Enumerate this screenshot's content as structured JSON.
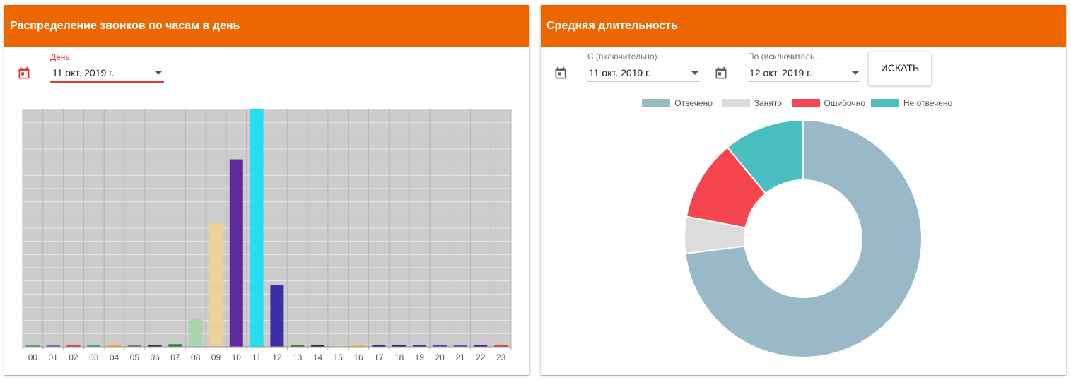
{
  "left_panel": {
    "title": "Распределение звонков по часам в день",
    "day_label": "День",
    "day_value": "11 окт. 2019 г."
  },
  "right_panel": {
    "title": "Средняя длительность",
    "from_label": "С (включительно)",
    "from_value": "11 окт. 2019 г.",
    "to_label": "По (исключитель…",
    "to_value": "12 окт. 2019 г.",
    "search_button": "ИСКАТЬ"
  },
  "colors": {
    "header": "#ee6600",
    "accent_red": "#e53935",
    "plot_bg": "#cccccc"
  },
  "icons": [
    "calendar-icon",
    "chevron-down-icon"
  ],
  "chart_data": [
    {
      "type": "bar",
      "title": "",
      "xlabel": "",
      "ylabel": "",
      "grid": true,
      "categories": [
        "00",
        "01",
        "02",
        "03",
        "04",
        "05",
        "06",
        "07",
        "08",
        "09",
        "10",
        "11",
        "12",
        "13",
        "14",
        "15",
        "16",
        "17",
        "18",
        "19",
        "20",
        "21",
        "22",
        "23"
      ],
      "values": [
        0,
        0,
        0,
        0,
        0,
        0,
        0,
        0.1,
        1.2,
        5.4,
        8.2,
        10.4,
        2.7,
        0,
        0,
        0,
        0,
        0,
        0,
        0,
        0,
        0,
        0,
        0
      ],
      "ylim": [
        0,
        10.4
      ],
      "bar_colors": [
        "#4caf50",
        "#7e57c2",
        "#e53935",
        "#26a69a",
        "#ffa726",
        "#8d6e63",
        "#333333",
        "#2e7d32",
        "#a5d6a7",
        "#f0d090",
        "#5e2a9e",
        "#25dff0",
        "#3d2ea8",
        "#2e7d32",
        "#212121",
        "#e0d0a0",
        "#f0c040",
        "#311b92",
        "#1a237e",
        "#283593",
        "#3949ab",
        "#3f51b5",
        "#4a148c",
        "#e53935"
      ]
    },
    {
      "type": "pie",
      "donut": true,
      "title": "",
      "legend_position": "top",
      "labels": [
        "Отвечено",
        "Занято",
        "Ошибочно",
        "Не отвечено"
      ],
      "values": [
        73,
        5,
        11,
        11
      ],
      "colors": [
        "#99b8c8",
        "#dcdcdc",
        "#f5454e",
        "#49bfbf"
      ]
    }
  ]
}
